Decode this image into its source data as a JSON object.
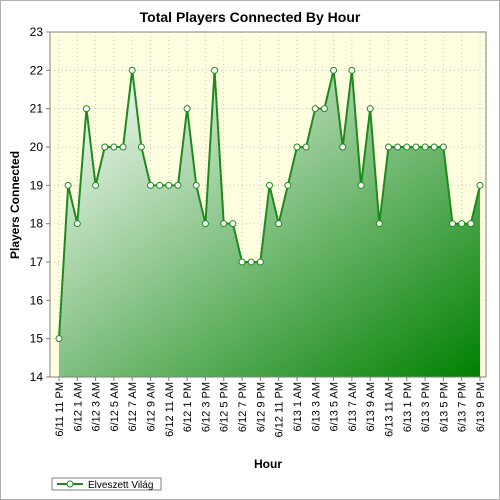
{
  "chart_data": {
    "type": "area",
    "title": "Total Players Connected By Hour",
    "xlabel": "Hour",
    "ylabel": "Players Connected",
    "ylim": [
      14,
      23
    ],
    "yticks": [
      14,
      15,
      16,
      17,
      18,
      19,
      20,
      21,
      22,
      23
    ],
    "grid": true,
    "legend_position": "bottom-left",
    "colors": {
      "line": "#1e8a1e",
      "fill_dark": "#008000",
      "fill_light": "#ffffff",
      "plot_bg": "#ffffe0",
      "marker_fill": "#ffffff"
    },
    "x": [
      "6/11 11 PM",
      "6/12 12 AM",
      "6/12 1 AM",
      "6/12 2 AM",
      "6/12 3 AM",
      "6/12 4 AM",
      "6/12 5 AM",
      "6/12 6 AM",
      "6/12 7 AM",
      "6/12 8 AM",
      "6/12 9 AM",
      "6/12 10 AM",
      "6/12 11 AM",
      "6/12 12 PM",
      "6/12 1 PM",
      "6/12 2 PM",
      "6/12 3 PM",
      "6/12 4 PM",
      "6/12 5 PM",
      "6/12 6 PM",
      "6/12 7 PM",
      "6/12 8 PM",
      "6/12 9 PM",
      "6/12 10 PM",
      "6/12 11 PM",
      "6/13 12 AM",
      "6/13 1 AM",
      "6/13 2 AM",
      "6/13 3 AM",
      "6/13 4 AM",
      "6/13 5 AM",
      "6/13 6 AM",
      "6/13 7 AM",
      "6/13 8 AM",
      "6/13 9 AM",
      "6/13 10 AM",
      "6/13 11 AM",
      "6/13 12 PM",
      "6/13 1 PM",
      "6/13 2 PM",
      "6/13 3 PM",
      "6/13 4 PM",
      "6/13 5 PM",
      "6/13 6 PM",
      "6/13 7 PM",
      "6/13 8 PM",
      "6/13 9 PM"
    ],
    "xtick_labels": [
      "6/11 11 PM",
      "6/12 1 AM",
      "6/12 3 AM",
      "6/12 5 AM",
      "6/12 7 AM",
      "6/12 9 AM",
      "6/12 11 AM",
      "6/12 1 PM",
      "6/12 3 PM",
      "6/12 5 PM",
      "6/12 7 PM",
      "6/12 9 PM",
      "6/12 11 PM",
      "6/13 1 AM",
      "6/13 3 AM",
      "6/13 5 AM",
      "6/13 7 AM",
      "6/13 9 AM",
      "6/13 11 AM",
      "6/13 1 PM",
      "6/13 3 PM",
      "6/13 5 PM",
      "6/13 7 PM",
      "6/13 9 PM"
    ],
    "series": [
      {
        "name": "Elveszett Világ",
        "values": [
          15,
          19,
          18,
          21,
          19,
          20,
          20,
          20,
          22,
          20,
          19,
          19,
          19,
          19,
          21,
          19,
          18,
          22,
          18,
          18,
          17,
          17,
          17,
          19,
          18,
          19,
          20,
          20,
          21,
          21,
          22,
          20,
          22,
          19,
          21,
          18,
          20,
          20,
          20,
          20,
          20,
          20,
          20,
          18,
          18,
          18,
          19
        ]
      }
    ]
  }
}
